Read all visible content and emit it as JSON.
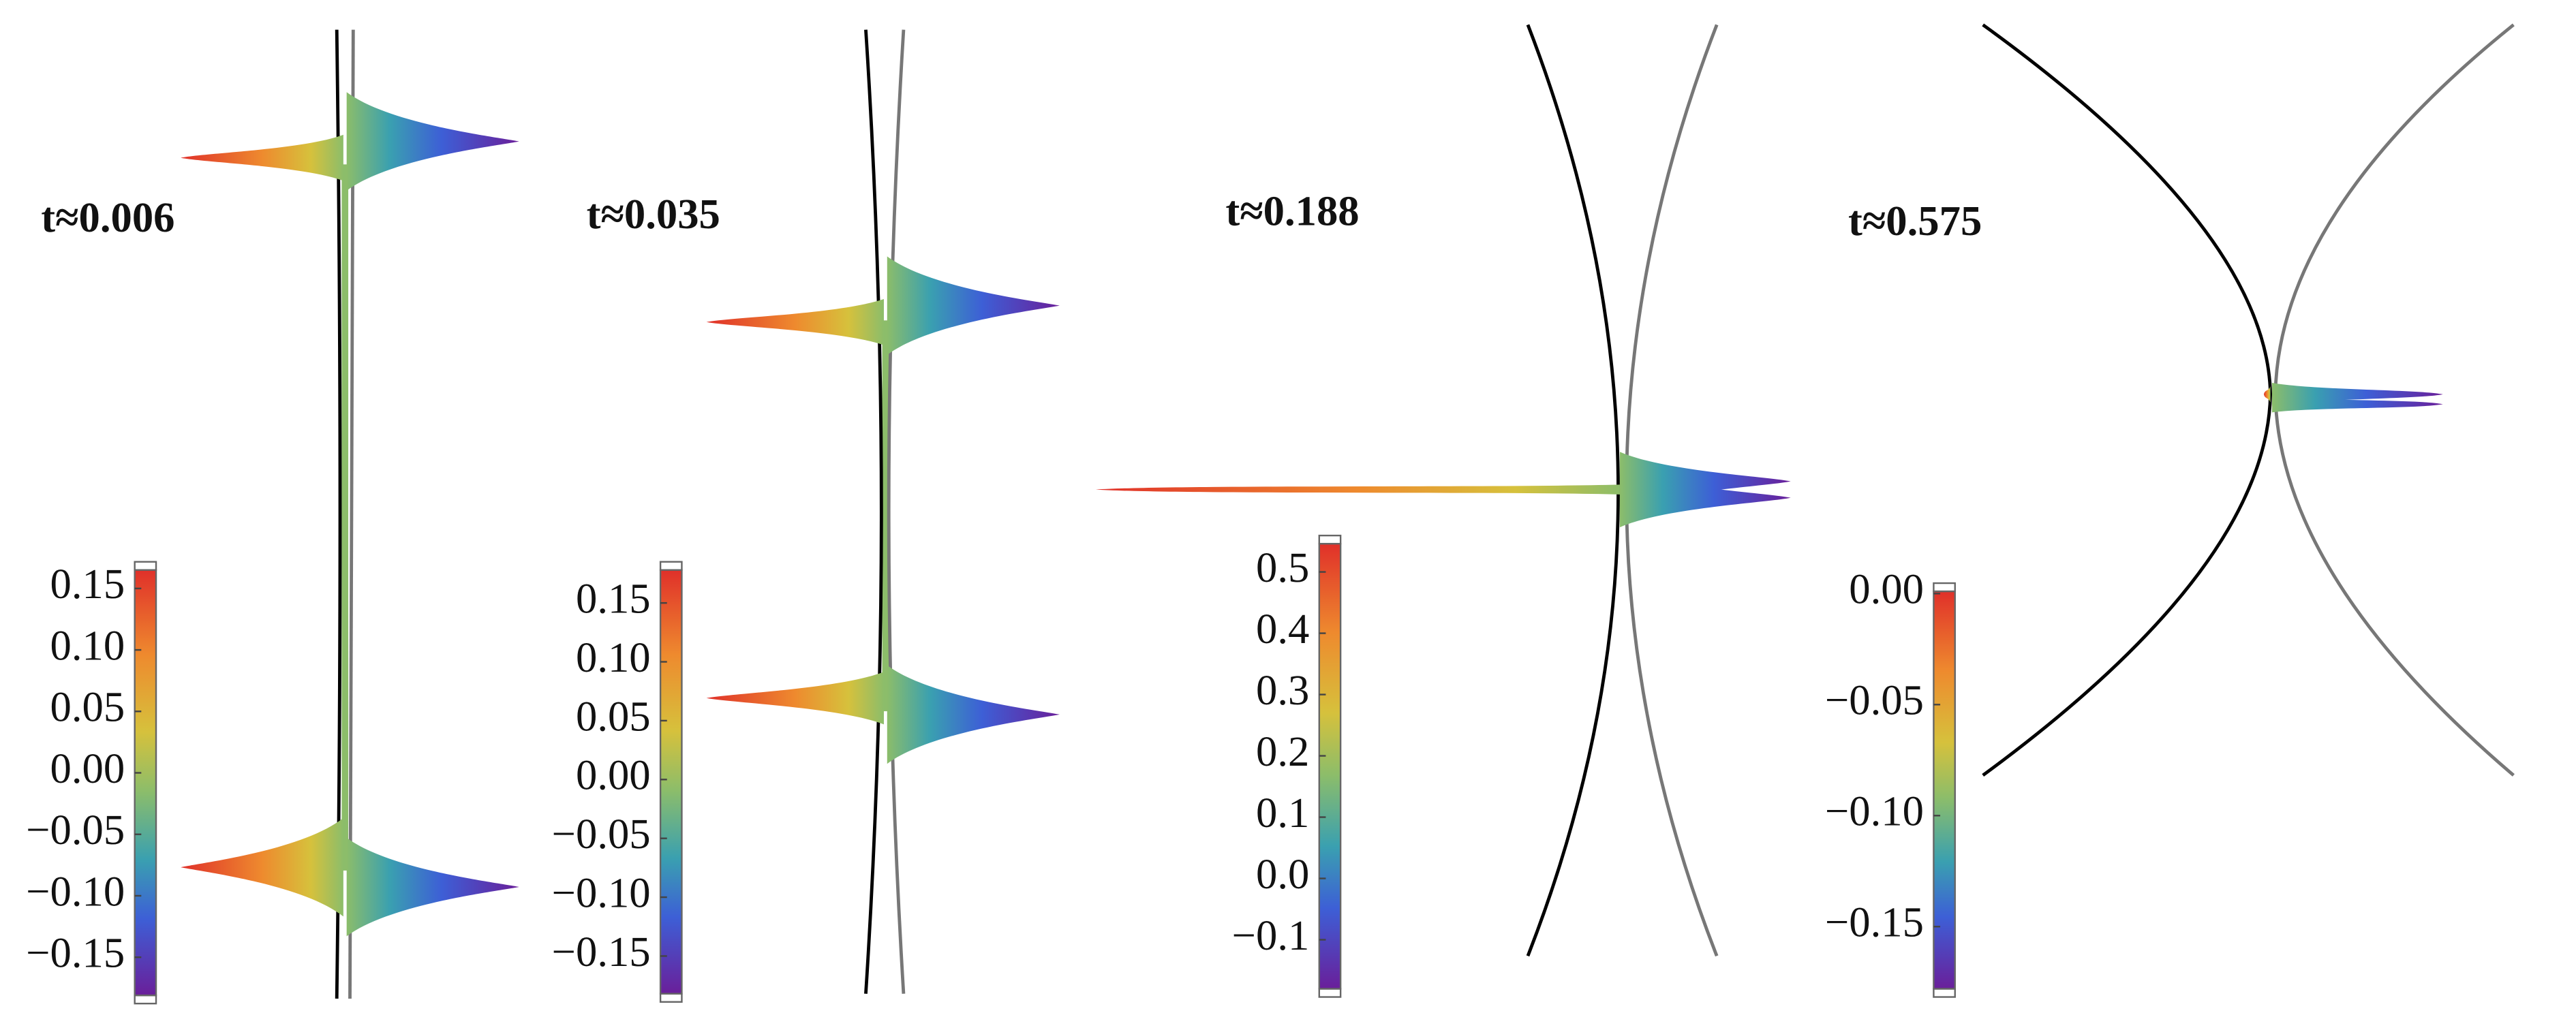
{
  "panels": [
    {
      "label": "t≈0.006",
      "colorbar": {
        "lim": [
          -0.181,
          0.165
        ],
        "ticks": [
          0.15,
          {
            "value": 0.1,
            "label": "0.10"
          },
          0.05,
          {
            "value": 0,
            "label": "0.00"
          },
          {
            "value": -0.05,
            "label": "−0.05"
          },
          {
            "value": -0.1,
            "label": "−0.10"
          },
          {
            "value": -0.15,
            "label": "−0.15"
          }
        ]
      }
    },
    {
      "label": "t≈0.035",
      "colorbar": {
        "lim": [
          -0.182,
          0.178
        ],
        "ticks": [
          0.15,
          {
            "value": 0.1,
            "label": "0.10"
          },
          0.05,
          {
            "value": 0,
            "label": "0.00"
          },
          {
            "value": -0.05,
            "label": "−0.05"
          },
          {
            "value": -0.1,
            "label": "−0.10"
          },
          {
            "value": -0.15,
            "label": "−0.15"
          }
        ]
      }
    },
    {
      "label": "t≈0.188",
      "colorbar": {
        "lim": [
          -0.18,
          0.546
        ],
        "ticks": [
          0.5,
          0.4,
          0.3,
          0.2,
          0.1,
          {
            "value": 0,
            "label": "0.0"
          },
          {
            "value": -0.1,
            "label": "−0.1"
          }
        ]
      }
    },
    {
      "label": "t≈0.575",
      "colorbar": {
        "lim": [
          -0.178,
          0.001
        ],
        "ticks": [
          {
            "value": 0,
            "label": "0.00"
          },
          {
            "value": -0.05,
            "label": "−0.05"
          },
          {
            "value": -0.1,
            "label": "−0.10"
          },
          {
            "value": -0.15,
            "label": "−0.15"
          }
        ]
      }
    }
  ]
}
